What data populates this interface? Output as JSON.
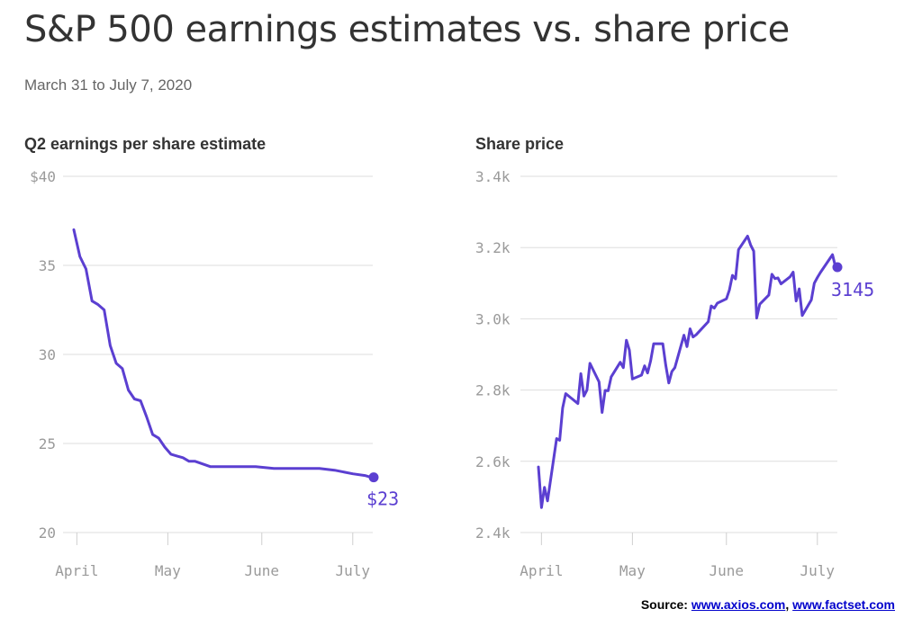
{
  "title": "S&P 500 earnings estimates vs. share price",
  "subtitle": "March 31 to July 7, 2020",
  "source": {
    "label": "Source:",
    "link1": "www.axios.com",
    "sep": ",",
    "link2": "www.factset.com"
  },
  "colors": {
    "series": "#5b3fd1",
    "grid": "#dedede",
    "tick": "#9a9a9a"
  },
  "chart_data": [
    {
      "type": "line",
      "title": "Q2 earnings per share estimate",
      "x_range": [
        "2020-03-31",
        "2020-07-07"
      ],
      "ylim": [
        20,
        40
      ],
      "yticks": [
        {
          "value": 40,
          "label": "$40"
        },
        {
          "value": 35,
          "label": "35"
        },
        {
          "value": 30,
          "label": "30"
        },
        {
          "value": 25,
          "label": "25"
        },
        {
          "value": 20,
          "label": "20"
        }
      ],
      "xticks": [
        {
          "date": "2020-04-01",
          "label": "April"
        },
        {
          "date": "2020-05-01",
          "label": "May"
        },
        {
          "date": "2020-06-01",
          "label": "June"
        },
        {
          "date": "2020-07-01",
          "label": "July"
        }
      ],
      "grid": true,
      "end_label": "$23",
      "series": [
        {
          "x": [
            "2020-03-31",
            "2020-04-02",
            "2020-04-04",
            "2020-04-06",
            "2020-04-08",
            "2020-04-10",
            "2020-04-12",
            "2020-04-14",
            "2020-04-16",
            "2020-04-18",
            "2020-04-20",
            "2020-04-22",
            "2020-04-24",
            "2020-04-26",
            "2020-04-28",
            "2020-04-30",
            "2020-05-02",
            "2020-05-04",
            "2020-05-06",
            "2020-05-08",
            "2020-05-10",
            "2020-05-15",
            "2020-05-20",
            "2020-05-25",
            "2020-05-30",
            "2020-06-05",
            "2020-06-10",
            "2020-06-15",
            "2020-06-20",
            "2020-06-25",
            "2020-07-01",
            "2020-07-05",
            "2020-07-07"
          ],
          "values": [
            37.0,
            35.5,
            34.8,
            33.0,
            32.8,
            32.5,
            30.5,
            29.5,
            29.2,
            28.0,
            27.5,
            27.4,
            26.5,
            25.5,
            25.3,
            24.8,
            24.4,
            24.3,
            24.2,
            24.0,
            24.0,
            23.7,
            23.7,
            23.7,
            23.7,
            23.6,
            23.6,
            23.6,
            23.6,
            23.5,
            23.3,
            23.2,
            23.1
          ]
        }
      ]
    },
    {
      "type": "line",
      "title": "Share price",
      "x_range": [
        "2020-03-31",
        "2020-07-07"
      ],
      "ylim": [
        2400,
        3400
      ],
      "yticks": [
        {
          "value": 3400,
          "label": "3.4k"
        },
        {
          "value": 3200,
          "label": "3.2k"
        },
        {
          "value": 3000,
          "label": "3.0k"
        },
        {
          "value": 2800,
          "label": "2.8k"
        },
        {
          "value": 2600,
          "label": "2.6k"
        },
        {
          "value": 2400,
          "label": "2.4k"
        }
      ],
      "xticks": [
        {
          "date": "2020-04-01",
          "label": "April"
        },
        {
          "date": "2020-05-01",
          "label": "May"
        },
        {
          "date": "2020-06-01",
          "label": "June"
        },
        {
          "date": "2020-07-01",
          "label": "July"
        }
      ],
      "grid": true,
      "end_label": "3145",
      "series": [
        {
          "x": [
            "2020-03-31",
            "2020-04-01",
            "2020-04-02",
            "2020-04-03",
            "2020-04-06",
            "2020-04-07",
            "2020-04-08",
            "2020-04-09",
            "2020-04-13",
            "2020-04-14",
            "2020-04-15",
            "2020-04-16",
            "2020-04-17",
            "2020-04-20",
            "2020-04-21",
            "2020-04-22",
            "2020-04-23",
            "2020-04-24",
            "2020-04-27",
            "2020-04-28",
            "2020-04-29",
            "2020-04-30",
            "2020-05-01",
            "2020-05-04",
            "2020-05-05",
            "2020-05-06",
            "2020-05-07",
            "2020-05-08",
            "2020-05-11",
            "2020-05-12",
            "2020-05-13",
            "2020-05-14",
            "2020-05-15",
            "2020-05-18",
            "2020-05-19",
            "2020-05-20",
            "2020-05-21",
            "2020-05-22",
            "2020-05-26",
            "2020-05-27",
            "2020-05-28",
            "2020-05-29",
            "2020-06-01",
            "2020-06-02",
            "2020-06-03",
            "2020-06-04",
            "2020-06-05",
            "2020-06-08",
            "2020-06-09",
            "2020-06-10",
            "2020-06-11",
            "2020-06-12",
            "2020-06-15",
            "2020-06-16",
            "2020-06-17",
            "2020-06-18",
            "2020-06-19",
            "2020-06-22",
            "2020-06-23",
            "2020-06-24",
            "2020-06-25",
            "2020-06-26",
            "2020-06-29",
            "2020-06-30",
            "2020-07-01",
            "2020-07-02",
            "2020-07-06",
            "2020-07-07"
          ],
          "values": [
            2584,
            2470,
            2527,
            2489,
            2664,
            2659,
            2750,
            2790,
            2762,
            2846,
            2783,
            2800,
            2875,
            2823,
            2737,
            2799,
            2798,
            2837,
            2878,
            2863,
            2940,
            2912,
            2831,
            2842,
            2868,
            2848,
            2882,
            2930,
            2930,
            2870,
            2820,
            2852,
            2863,
            2954,
            2922,
            2972,
            2949,
            2955,
            2992,
            3036,
            3030,
            3044,
            3056,
            3081,
            3122,
            3112,
            3194,
            3232,
            3207,
            3190,
            3002,
            3041,
            3067,
            3125,
            3113,
            3115,
            3098,
            3118,
            3131,
            3050,
            3084,
            3009,
            3053,
            3100,
            3116,
            3130,
            3180,
            3145
          ]
        }
      ]
    }
  ]
}
